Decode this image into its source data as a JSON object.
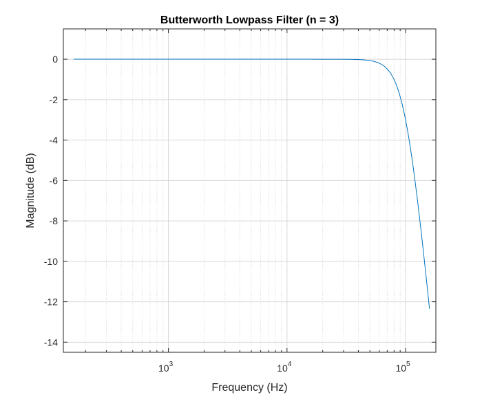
{
  "chart_data": {
    "type": "line",
    "title": "Butterworth Lowpass Filter (n = 3)",
    "xlabel": "Frequency (Hz)",
    "ylabel": "Magnitude (dB)",
    "xscale": "log",
    "xlim": [
      130,
      180000
    ],
    "ylim": [
      -14.5,
      1.5
    ],
    "grid": true,
    "minor_grid_x": true,
    "filter_order": 3,
    "cutoff_hz": 100000,
    "x_range": [
      159,
      159000
    ],
    "yticks": [
      0,
      -2,
      -4,
      -6,
      -8,
      -10,
      -12,
      -14
    ],
    "xticks": [
      {
        "value": 1000,
        "base": "10",
        "exp": "3"
      },
      {
        "value": 10000,
        "base": "10",
        "exp": "4"
      },
      {
        "value": 100000,
        "base": "10",
        "exp": "5"
      }
    ],
    "series": [
      {
        "color": "#0072BD",
        "points": [
          [
            159,
            0.0
          ],
          [
            1000,
            0.0
          ],
          [
            10000,
            0.0
          ],
          [
            20000,
            -0.0003
          ],
          [
            30000,
            -0.0031
          ],
          [
            40000,
            -0.0177
          ],
          [
            50000,
            -0.0671
          ],
          [
            60000,
            -0.193
          ],
          [
            70000,
            -0.449
          ],
          [
            80000,
            -0.887
          ],
          [
            90000,
            -1.5
          ],
          [
            100000,
            -3.01
          ],
          [
            110000,
            -4.0
          ],
          [
            120000,
            -5.2
          ],
          [
            130000,
            -6.8
          ],
          [
            140000,
            -8.7
          ],
          [
            150000,
            -10.8
          ],
          [
            159000,
            -12.3
          ]
        ]
      }
    ]
  }
}
